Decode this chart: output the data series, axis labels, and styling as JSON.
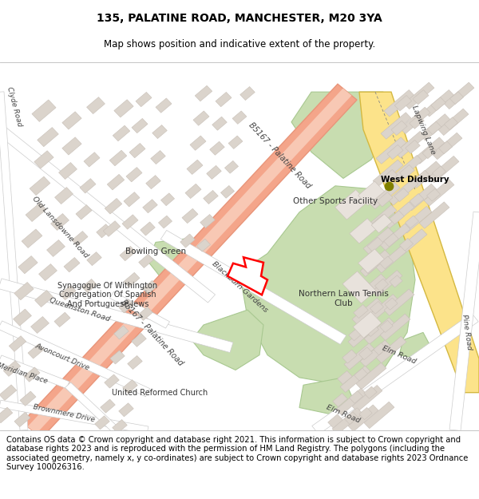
{
  "title_line1": "135, PALATINE ROAD, MANCHESTER, M20 3YA",
  "title_line2": "Map shows position and indicative extent of the property.",
  "copyright_text": "Contains OS data © Crown copyright and database right 2021. This information is subject to Crown copyright and database rights 2023 and is reproduced with the permission of HM Land Registry. The polygons (including the associated geometry, namely x, y co-ordinates) are subject to Crown copyright and database rights 2023 Ordnance Survey 100026316.",
  "bg_color": "#f0ede8",
  "road_main_fill": "#f4a58a",
  "road_main_edge": "#e8957a",
  "road_yellow_fill": "#fce38a",
  "road_yellow_edge": "#d4b840",
  "road_white_fill": "#ffffff",
  "road_white_edge": "#cccccc",
  "green_fill": "#c8ddb0",
  "green_edge": "#a8c890",
  "building_fill": "#dbd4cc",
  "building_edge": "#c8c0b8",
  "plot_edge": "#ff0000",
  "dot_color": "#808000",
  "dark_line": "#aaaaaa",
  "title_fs": 10,
  "subtitle_fs": 8.5,
  "copy_fs": 7.2,
  "label_fs": 6.8,
  "area_fs": 7.5
}
